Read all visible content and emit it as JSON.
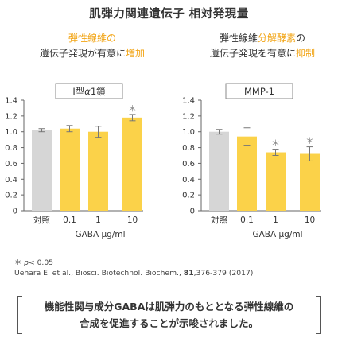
{
  "page": {
    "title": "肌弾力関連遺伝子 相対発現量"
  },
  "colors": {
    "control_bar": "#d6d6d6",
    "gaba_bar": "#fbd249",
    "accent_text": "#f2a516",
    "axis": "#666666",
    "text": "#333333"
  },
  "chart_data": [
    {
      "type": "bar",
      "subtitle_lines": [
        [
          {
            "text": "弾性線維の",
            "accent": true
          }
        ],
        [
          {
            "text": "遺伝子発現が有意に",
            "accent": false
          },
          {
            "text": "増加",
            "accent": true
          }
        ]
      ],
      "title": "I型α1鎖",
      "title_parts": [
        {
          "text": "I型",
          "italic": false
        },
        {
          "text": "α",
          "italic": true
        },
        {
          "text": "1鎖",
          "italic": false
        }
      ],
      "categories": [
        "対照",
        "0.1",
        "1",
        "10"
      ],
      "values": [
        1.02,
        1.04,
        1.0,
        1.18
      ],
      "errors": [
        0.02,
        0.04,
        0.07,
        0.04
      ],
      "significant": [
        false,
        false,
        false,
        true
      ],
      "bar_kinds": [
        "control",
        "gaba",
        "gaba",
        "gaba"
      ],
      "ylim": [
        0,
        1.4
      ],
      "yticks": [
        "0",
        "0.2",
        "0.4",
        "0.6",
        "0.8",
        "1.0",
        "1.2",
        "1.4"
      ],
      "xlabel": "GABA μg/ml",
      "ylabel": ""
    },
    {
      "type": "bar",
      "subtitle_lines": [
        [
          {
            "text": "弾性線維",
            "accent": false
          },
          {
            "text": "分解酵素",
            "accent": true
          },
          {
            "text": "の",
            "accent": false
          }
        ],
        [
          {
            "text": "遺伝子発現を有意に",
            "accent": false
          },
          {
            "text": "抑制",
            "accent": true
          }
        ]
      ],
      "title": "MMP-1",
      "title_parts": [
        {
          "text": "MMP-1",
          "italic": false
        }
      ],
      "categories": [
        "対照",
        "0.1",
        "1",
        "10"
      ],
      "values": [
        1.0,
        0.94,
        0.74,
        0.72
      ],
      "errors": [
        0.03,
        0.11,
        0.04,
        0.09
      ],
      "significant": [
        false,
        false,
        true,
        true
      ],
      "bar_kinds": [
        "control",
        "gaba",
        "gaba",
        "gaba"
      ],
      "ylim": [
        0,
        1.4
      ],
      "yticks": [
        "0",
        "0.2",
        "0.4",
        "0.6",
        "0.8",
        "1.0",
        "1.2",
        "1.4"
      ],
      "xlabel": "GABA μg/ml",
      "ylabel": ""
    }
  ],
  "significance": {
    "marker": "＊",
    "note_symbol": "＊",
    "note_p": "p",
    "note_rest": "< 0.05"
  },
  "citation": {
    "prefix": "Uehara E. et al., Biosci. Biotechnol. Biochem., ",
    "volume": "81",
    "pages": ",376-379 (2017)"
  },
  "conclusion": {
    "lines": [
      "機能性関与成分GABAは肌弾力のもととなる弾性線維の",
      "合成を促進することが示唆されました。"
    ]
  }
}
